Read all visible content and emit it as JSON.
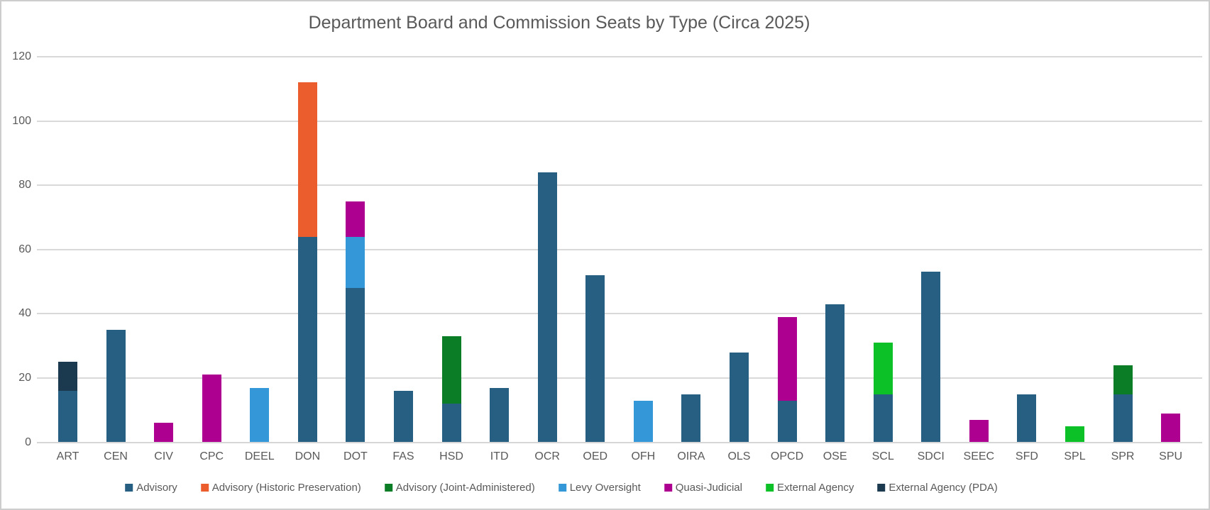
{
  "chart_data": {
    "type": "bar",
    "stacked": true,
    "title": "Department Board and Commission Seats by Type (Circa 2025)",
    "xlabel": "",
    "ylabel": "",
    "ylim": [
      0,
      120
    ],
    "yticks": [
      0,
      20,
      40,
      60,
      80,
      100,
      120
    ],
    "grid": true,
    "legend_position": "bottom",
    "text_color": "#595959",
    "gridline_color": "#d9d9d9",
    "categories": [
      "ART",
      "CEN",
      "CIV",
      "CPC",
      "DEEL",
      "DON",
      "DOT",
      "FAS",
      "HSD",
      "ITD",
      "OCR",
      "OED",
      "OFH",
      "OIRA",
      "OLS",
      "OPCD",
      "OSE",
      "SCL",
      "SDCI",
      "SEEC",
      "SFD",
      "SPL",
      "SPR",
      "SPU"
    ],
    "series": [
      {
        "name": "Advisory",
        "color": "#275F83",
        "values": [
          16,
          35,
          0,
          0,
          0,
          64,
          48,
          16,
          12,
          17,
          84,
          52,
          0,
          15,
          28,
          13,
          43,
          15,
          53,
          0,
          15,
          0,
          15,
          0
        ]
      },
      {
        "name": "Advisory (Historic Preservation)",
        "color": "#EC5D2E",
        "values": [
          0,
          0,
          0,
          0,
          0,
          48,
          0,
          0,
          0,
          0,
          0,
          0,
          0,
          0,
          0,
          0,
          0,
          0,
          0,
          0,
          0,
          0,
          0,
          0
        ]
      },
      {
        "name": "Advisory (Joint-Administered)",
        "color": "#0B7D27",
        "values": [
          0,
          0,
          0,
          0,
          0,
          0,
          0,
          0,
          21,
          0,
          0,
          0,
          0,
          0,
          0,
          0,
          0,
          0,
          0,
          0,
          0,
          0,
          9,
          0
        ]
      },
      {
        "name": "Levy Oversight",
        "color": "#3498D8",
        "values": [
          0,
          0,
          0,
          0,
          17,
          0,
          16,
          0,
          0,
          0,
          0,
          0,
          13,
          0,
          0,
          0,
          0,
          0,
          0,
          0,
          0,
          0,
          0,
          0
        ]
      },
      {
        "name": "Quasi-Judicial",
        "color": "#AD0091",
        "values": [
          0,
          0,
          6,
          21,
          0,
          0,
          11,
          0,
          0,
          0,
          0,
          0,
          0,
          0,
          0,
          26,
          0,
          0,
          0,
          7,
          0,
          0,
          0,
          9
        ]
      },
      {
        "name": "External Agency",
        "color": "#0CC127",
        "values": [
          0,
          0,
          0,
          0,
          0,
          0,
          0,
          0,
          0,
          0,
          0,
          0,
          0,
          0,
          0,
          0,
          0,
          16,
          0,
          0,
          0,
          5,
          0,
          0
        ]
      },
      {
        "name": "External Agency (PDA)",
        "color": "#1B3A50",
        "values": [
          9,
          0,
          0,
          0,
          0,
          0,
          0,
          0,
          0,
          0,
          0,
          0,
          0,
          0,
          0,
          0,
          0,
          0,
          0,
          0,
          0,
          0,
          0,
          0
        ]
      }
    ],
    "totals": {
      "ART": 25,
      "CEN": 35,
      "CIV": 6,
      "CPC": 21,
      "DEEL": 17,
      "DON": 112,
      "DOT": 75,
      "FAS": 16,
      "HSD": 33,
      "ITD": 17,
      "OCR": 84,
      "OED": 52,
      "OFH": 13,
      "OIRA": 15,
      "OLS": 28,
      "OPCD": 39,
      "OSE": 43,
      "SCL": 31,
      "SDCI": 53,
      "SEEC": 7,
      "SFD": 15,
      "SPL": 5,
      "SPR": 24,
      "SPU": 9
    }
  }
}
